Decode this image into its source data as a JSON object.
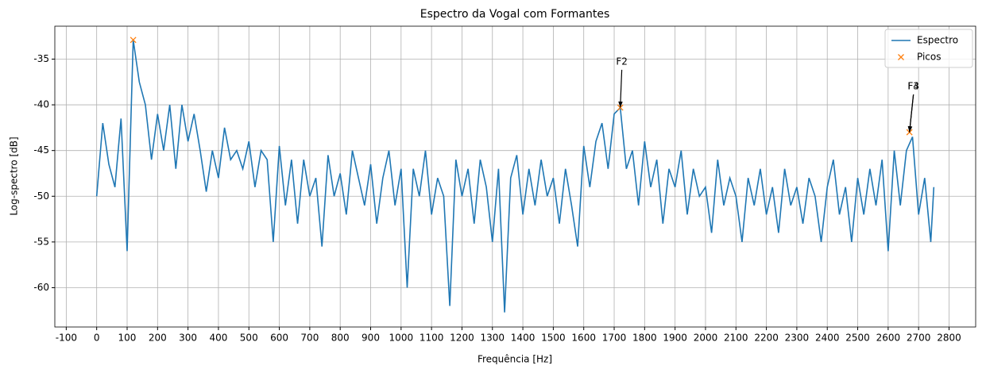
{
  "chart_data": {
    "type": "line",
    "title": "Espectro da Vogal com Formantes",
    "x_label": "Frequência [Hz]",
    "y_label": "Log-spectro [dB]",
    "xlim": [
      -137.5,
      2887.5
    ],
    "ylim": [
      -64.3,
      -31.4
    ],
    "xticks": [
      -100,
      0,
      100,
      200,
      300,
      400,
      500,
      600,
      700,
      800,
      900,
      1000,
      1100,
      1200,
      1300,
      1400,
      1500,
      1600,
      1700,
      1800,
      1900,
      2000,
      2100,
      2200,
      2300,
      2400,
      2500,
      2600,
      2700,
      2800
    ],
    "yticks": [
      -60,
      -55,
      -50,
      -45,
      -40,
      -35
    ],
    "grid": true,
    "legend": "upper right",
    "series": [
      {
        "name": "Espectro",
        "color": "#1f77b4",
        "x": [
          0,
          20,
          40,
          60,
          80,
          100,
          120,
          140,
          160,
          180,
          200,
          220,
          240,
          260,
          280,
          300,
          320,
          340,
          360,
          380,
          400,
          420,
          440,
          460,
          480,
          500,
          520,
          540,
          560,
          580,
          600,
          620,
          640,
          660,
          680,
          700,
          720,
          740,
          760,
          780,
          800,
          820,
          840,
          860,
          880,
          900,
          920,
          940,
          960,
          980,
          1000,
          1020,
          1040,
          1060,
          1080,
          1100,
          1120,
          1140,
          1160,
          1180,
          1200,
          1220,
          1240,
          1260,
          1280,
          1300,
          1320,
          1340,
          1360,
          1380,
          1400,
          1420,
          1440,
          1460,
          1480,
          1500,
          1520,
          1540,
          1560,
          1580,
          1600,
          1620,
          1640,
          1660,
          1680,
          1700,
          1720,
          1740,
          1760,
          1780,
          1800,
          1820,
          1840,
          1860,
          1880,
          1900,
          1920,
          1940,
          1960,
          1980,
          2000,
          2020,
          2040,
          2060,
          2080,
          2100,
          2120,
          2140,
          2160,
          2180,
          2200,
          2220,
          2240,
          2260,
          2280,
          2300,
          2320,
          2340,
          2360,
          2380,
          2400,
          2420,
          2440,
          2460,
          2480,
          2500,
          2520,
          2540,
          2560,
          2580,
          2600,
          2620,
          2640,
          2660,
          2680,
          2700,
          2720,
          2740,
          2750
        ],
        "values": [
          -50,
          -42,
          -46.5,
          -49,
          -41.5,
          -56,
          -32.9,
          -37.5,
          -40,
          -46,
          -41,
          -45,
          -40,
          -47,
          -40,
          -44,
          -41,
          -45,
          -49.5,
          -45,
          -48,
          -42.5,
          -46,
          -45,
          -47,
          -44,
          -49,
          -45,
          -46,
          -55,
          -44.5,
          -51,
          -46,
          -53,
          -46,
          -50,
          -48,
          -55.5,
          -45.5,
          -50,
          -47.5,
          -52,
          -45,
          -48,
          -51,
          -46.5,
          -53,
          -48,
          -45,
          -51,
          -47,
          -60,
          -47,
          -50,
          -45,
          -52,
          -48,
          -50,
          -62,
          -46,
          -50,
          -47,
          -53,
          -46,
          -49,
          -55,
          -47,
          -62.7,
          -48,
          -45.5,
          -52,
          -47,
          -51,
          -46,
          -50,
          -48,
          -53,
          -47,
          -51,
          -55.5,
          -44.5,
          -49,
          -44,
          -42,
          -47,
          -41,
          -40.3,
          -47,
          -45,
          -51,
          -44,
          -49,
          -46,
          -53,
          -47,
          -49,
          -45,
          -52,
          -47,
          -50,
          -49,
          -54,
          -46,
          -51,
          -48,
          -50,
          -55,
          -48,
          -51,
          -47,
          -52,
          -49,
          -54,
          -47,
          -51,
          -49,
          -53,
          -48,
          -50,
          -55,
          -49,
          -46,
          -52,
          -49,
          -55,
          -48,
          -52,
          -47,
          -51,
          -46,
          -56,
          -45,
          -51,
          -45,
          -43.5,
          -52,
          -48,
          -55,
          -49
        ]
      },
      {
        "name": "Picos",
        "color": "#ff7f0e",
        "marker": "x",
        "x": [
          120,
          1720,
          2670
        ],
        "values": [
          -32.9,
          -40.3,
          -43.0
        ]
      }
    ],
    "annotations": [
      {
        "text": "F2",
        "x": 1720,
        "y": -40.3,
        "text_x": 1725,
        "text_y": -35.3
      },
      {
        "text": "F3",
        "x": 2670,
        "y": -43.0,
        "text_x": 2683,
        "text_y": -38.0
      },
      {
        "text": "F4",
        "x": 2670,
        "y": -43.0,
        "text_x": 2683,
        "text_y": -38.0
      }
    ]
  }
}
